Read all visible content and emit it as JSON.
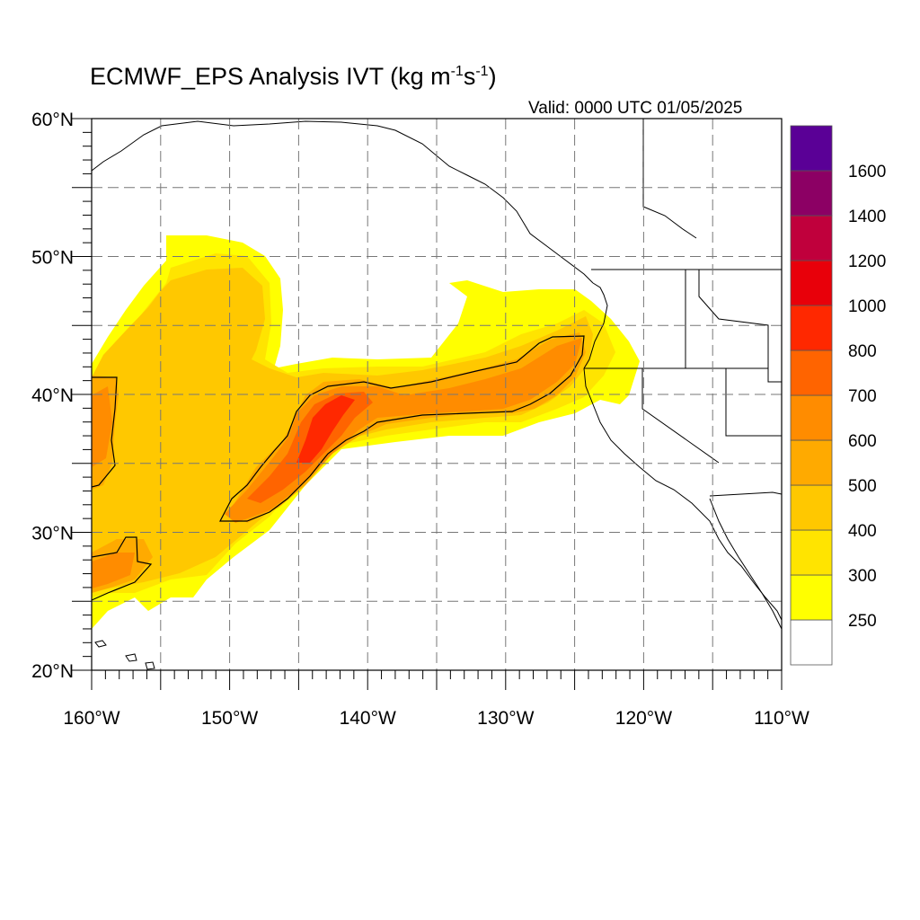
{
  "title": {
    "main": "ECMWF_EPS Analysis IVT (kg m",
    "sup1": "-1",
    "mid": "s",
    "sup2": "-1",
    "end": ")"
  },
  "valid": "Valid: 0000 UTC 01/05/2025",
  "map": {
    "lon_range": [
      -160,
      -110
    ],
    "lat_range": [
      20,
      60
    ],
    "grid": "dashed every 5 degrees",
    "lon_ticks": [
      {
        "value": -160,
        "label": "160°W"
      },
      {
        "value": -150,
        "label": "150°W"
      },
      {
        "value": -140,
        "label": "140°W"
      },
      {
        "value": -130,
        "label": "130°W"
      },
      {
        "value": -120,
        "label": "120°W"
      },
      {
        "value": -110,
        "label": "110°W"
      }
    ],
    "lat_ticks": [
      {
        "value": 20,
        "label": "20°N"
      },
      {
        "value": 30,
        "label": "30°N"
      },
      {
        "value": 40,
        "label": "40°N"
      },
      {
        "value": 50,
        "label": "50°N"
      },
      {
        "value": 60,
        "label": "60°N"
      }
    ]
  },
  "colorbar": {
    "levels": [
      "250",
      "300",
      "400",
      "500",
      "600",
      "700",
      "800",
      "1000",
      "1200",
      "1400",
      "1600"
    ],
    "colors": [
      "#ffffff",
      "#ffff00",
      "#ffe400",
      "#ffc800",
      "#ffaa00",
      "#ff8c00",
      "#ff6400",
      "#ff2800",
      "#e8000a",
      "#c0003c",
      "#8c0064",
      "#5a0096"
    ]
  },
  "field_colors": {
    "c250": "#ffff00",
    "c300": "#ffe400",
    "c400": "#ffc800",
    "c500": "#ffaa00",
    "c600": "#ff8c00",
    "c700": "#ff6400",
    "c800": "#ff2800",
    "coast": "#000000",
    "grid": "#777777"
  }
}
